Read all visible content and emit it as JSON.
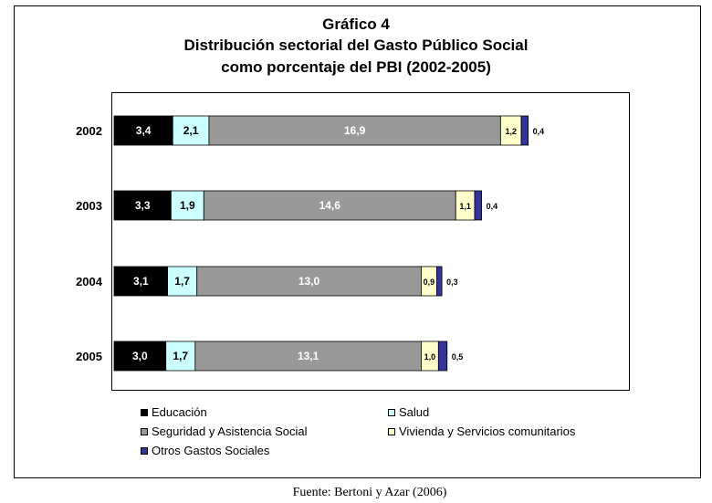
{
  "chart_data": {
    "type": "bar",
    "orientation": "horizontal",
    "stacked": true,
    "title_lines": [
      "Gráfico 4",
      "Distribución sectorial del Gasto Público Social",
      "como porcentaje del PBI (2002-2005)"
    ],
    "categories": [
      "2002",
      "2003",
      "2004",
      "2005"
    ],
    "series": [
      {
        "name": "Educación",
        "color": "#000000",
        "label_color": "#ffffff",
        "values": [
          3.4,
          3.3,
          3.1,
          3.0
        ],
        "labels": [
          "3,4",
          "3,3",
          "3,1",
          "3,0"
        ]
      },
      {
        "name": "Salud",
        "color": "#ccffff",
        "label_color": "#000000",
        "values": [
          2.1,
          1.9,
          1.7,
          1.7
        ],
        "labels": [
          "2,1",
          "1,9",
          "1,7",
          "1,7"
        ]
      },
      {
        "name": "Seguridad y Asistencia Social",
        "color": "#999999",
        "label_color": "#ffffff",
        "values": [
          16.9,
          14.6,
          13.0,
          13.1
        ],
        "labels": [
          "16,9",
          "14,6",
          "13,0",
          "13,1"
        ]
      },
      {
        "name": "Vivienda y Servicios comunitarios",
        "color": "#ffffcc",
        "label_color": "#000000",
        "values": [
          1.2,
          1.1,
          0.9,
          1.0
        ],
        "labels": [
          "1,2",
          "1,1",
          "0,9",
          "1,0"
        ]
      },
      {
        "name": "Otros Gastos Sociales",
        "color": "#333399",
        "label_color": "#000000",
        "values": [
          0.4,
          0.4,
          0.3,
          0.5
        ],
        "labels": [
          "0,4",
          "0,4",
          "0,3",
          "0,5"
        ]
      }
    ],
    "xlim": [
      0,
      30
    ],
    "grid": false,
    "legend_position": "bottom",
    "source": "Fuente: Bertoni y Azar (2006)"
  }
}
